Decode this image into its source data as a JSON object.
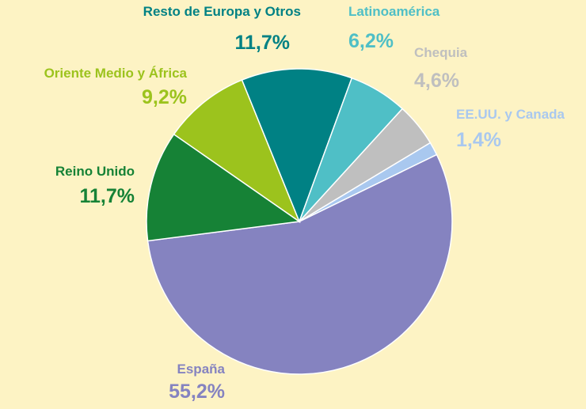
{
  "chart_data": {
    "type": "pie",
    "labels": [
      "España",
      "Reino Unido",
      "Oriente Medio y África",
      "Resto de Europa y Otros",
      "Latinoamérica",
      "Chequia",
      "EE.UU. y Canada"
    ],
    "values": [
      55.2,
      11.7,
      9.2,
      11.7,
      6.2,
      4.6,
      1.4
    ],
    "value_labels": [
      "55,2%",
      "11,7%",
      "9,2%",
      "11,7%",
      "6,2%",
      "4,6%",
      "1,4%"
    ],
    "colors": [
      "#8583c0",
      "#168236",
      "#9cc31d",
      "#008184",
      "#4fbfc6",
      "#bfbfbf",
      "#a9c8ef"
    ]
  }
}
